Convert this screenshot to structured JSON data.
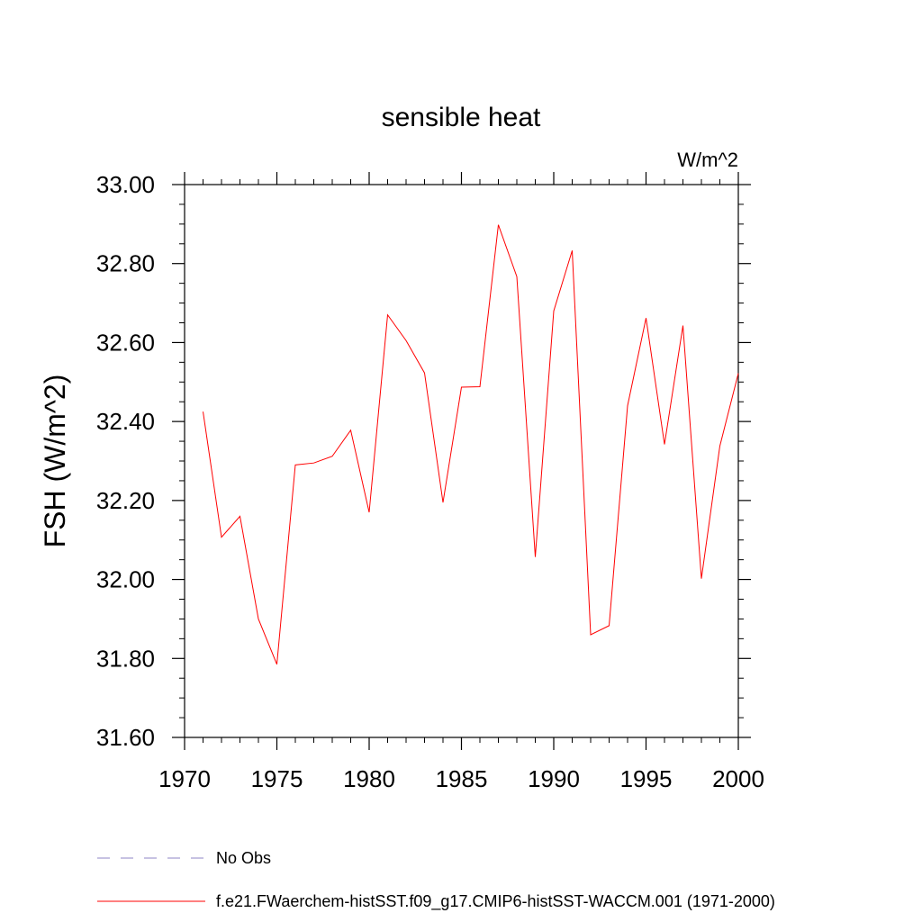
{
  "chart_data": {
    "type": "line",
    "title": "sensible heat",
    "units_label": "W/m^2",
    "ylabel": "FSH  (W/m^2)",
    "xlabel": "",
    "xlim": [
      1970,
      2000
    ],
    "ylim": [
      31.6,
      33.0
    ],
    "xticks": [
      "1970",
      "1975",
      "1980",
      "1985",
      "1990",
      "1995",
      "2000"
    ],
    "yticks": [
      "31.60",
      "31.80",
      "32.00",
      "32.20",
      "32.40",
      "32.60",
      "32.80",
      "33.00"
    ],
    "x": [
      1971,
      1972,
      1973,
      1974,
      1975,
      1976,
      1977,
      1978,
      1979,
      1980,
      1981,
      1982,
      1983,
      1984,
      1985,
      1986,
      1987,
      1988,
      1989,
      1990,
      1991,
      1992,
      1993,
      1994,
      1995,
      1996,
      1997,
      1998,
      1999,
      2000
    ],
    "series": [
      {
        "name": "f.e21.FWaerchem-histSST.f09_g17.CMIP6-histSST-WACCM.001 (1971-2000)",
        "color": "#ff0000",
        "values": [
          32.425,
          32.107,
          32.16,
          31.9,
          31.785,
          32.29,
          32.295,
          32.312,
          32.378,
          32.17,
          32.67,
          32.605,
          32.523,
          32.195,
          32.487,
          32.488,
          32.898,
          32.767,
          32.057,
          32.68,
          32.833,
          31.86,
          31.883,
          32.44,
          32.662,
          32.342,
          32.643,
          32.002,
          32.338,
          32.522
        ]
      }
    ],
    "legend": [
      {
        "label": "No Obs",
        "color": "#8f84c4",
        "style": "dashed"
      },
      {
        "label": "f.e21.FWaerchem-histSST.f09_g17.CMIP6-histSST-WACCM.001 (1971-2000)",
        "color": "#ff0000",
        "style": "solid"
      }
    ],
    "legend_placement": "bottom-left",
    "grid": false
  }
}
